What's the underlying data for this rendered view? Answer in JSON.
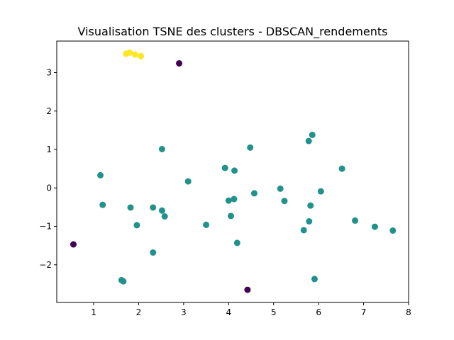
{
  "chart_data": {
    "type": "scatter",
    "title": "Visualisation TSNE des clusters - DBSCAN_rendements",
    "xlabel": "",
    "ylabel": "",
    "xlim": [
      0.18,
      8.0
    ],
    "ylim": [
      -2.98,
      3.82
    ],
    "xticks": [
      1,
      2,
      3,
      4,
      5,
      6,
      7,
      8
    ],
    "yticks": [
      -2,
      -1,
      0,
      1,
      2,
      3
    ],
    "grid": false,
    "legend": "none",
    "colors": {
      "noise": "#440154",
      "cluster_0": "#21918c",
      "cluster_1": "#fde725"
    },
    "series": [
      {
        "color_key": "noise",
        "points": [
          [
            2.9,
            3.24
          ],
          [
            0.55,
            -1.47
          ],
          [
            4.42,
            -2.65
          ]
        ]
      },
      {
        "color_key": "cluster_1",
        "points": [
          [
            1.72,
            3.49
          ],
          [
            1.8,
            3.52
          ],
          [
            1.92,
            3.47
          ],
          [
            2.05,
            3.43
          ]
        ]
      },
      {
        "color_key": "cluster_0",
        "points": [
          [
            1.15,
            0.33
          ],
          [
            1.2,
            -0.44
          ],
          [
            1.62,
            -2.4
          ],
          [
            1.66,
            -2.43
          ],
          [
            1.82,
            -0.51
          ],
          [
            1.96,
            -0.97
          ],
          [
            2.32,
            -0.51
          ],
          [
            2.32,
            -1.68
          ],
          [
            2.52,
            1.01
          ],
          [
            2.52,
            -0.59
          ],
          [
            2.58,
            -0.74
          ],
          [
            3.1,
            0.17
          ],
          [
            3.5,
            -0.96
          ],
          [
            3.92,
            0.52
          ],
          [
            4.0,
            -0.33
          ],
          [
            4.05,
            -0.73
          ],
          [
            4.13,
            0.45
          ],
          [
            4.12,
            -0.29
          ],
          [
            4.19,
            -1.43
          ],
          [
            4.48,
            1.05
          ],
          [
            4.57,
            -0.14
          ],
          [
            5.15,
            -0.02
          ],
          [
            5.24,
            -0.34
          ],
          [
            5.67,
            -1.1
          ],
          [
            5.78,
            1.22
          ],
          [
            5.79,
            -0.87
          ],
          [
            5.82,
            -0.46
          ],
          [
            5.86,
            1.38
          ],
          [
            5.91,
            -2.37
          ],
          [
            6.05,
            -0.09
          ],
          [
            6.52,
            0.5
          ],
          [
            6.81,
            -0.85
          ],
          [
            7.25,
            -1.01
          ],
          [
            7.65,
            -1.11
          ]
        ]
      }
    ]
  }
}
